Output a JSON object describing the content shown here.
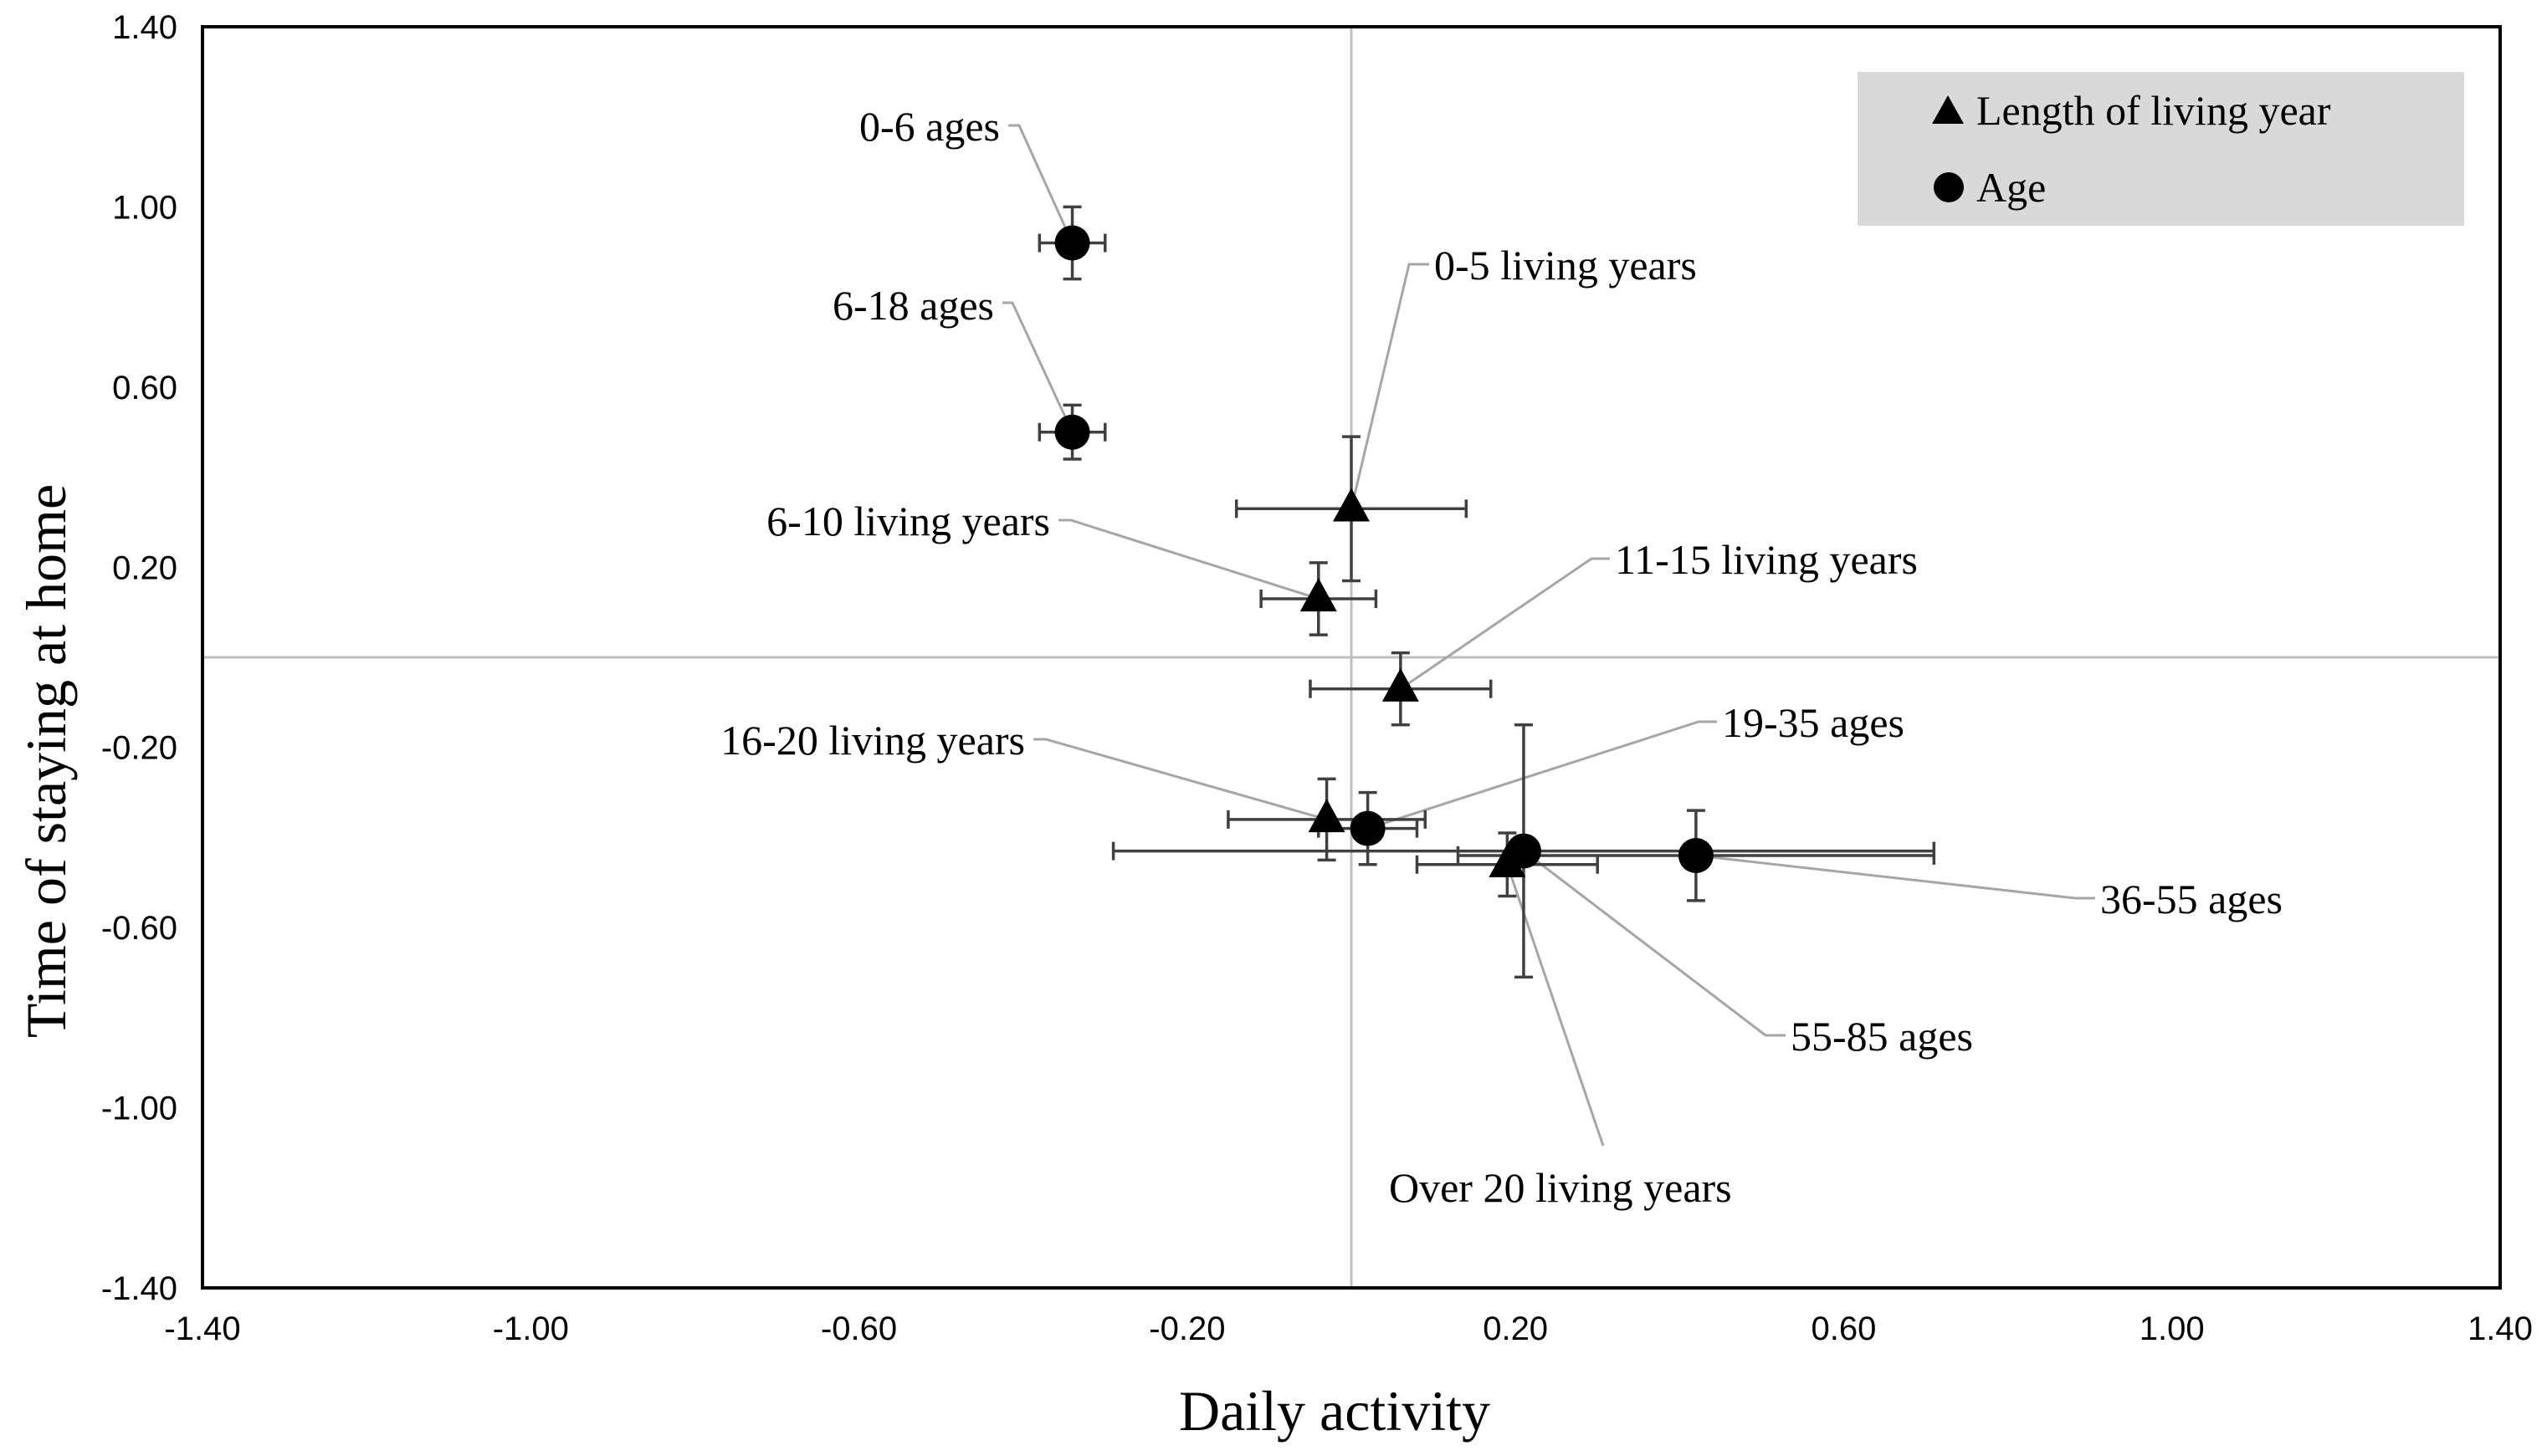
{
  "chart_data": {
    "type": "scatter",
    "title": "",
    "xlabel": "Daily activity",
    "ylabel": "Time of staying at home",
    "xlim": [
      -1.4,
      1.4
    ],
    "ylim": [
      -1.4,
      1.4
    ],
    "x_ticks": [
      "-1.40",
      "-1.00",
      "-0.60",
      "-0.20",
      "0.20",
      "0.60",
      "1.00",
      "1.40"
    ],
    "y_ticks": [
      "1.40",
      "1.00",
      "0.60",
      "0.20",
      "-0.20",
      "-0.60",
      "-1.00",
      "-1.40"
    ],
    "grid": false,
    "reference_lines": {
      "x": 0.0,
      "y": 0.0
    },
    "legend_position": "top-right",
    "series": [
      {
        "name": "Length of living year",
        "marker": "triangle",
        "points": [
          {
            "label": "0-5 living years",
            "x": 0.0,
            "y": 0.33,
            "xerr": 0.14,
            "yerr": 0.16
          },
          {
            "label": "6-10 living years",
            "x": -0.04,
            "y": 0.13,
            "xerr": 0.07,
            "yerr": 0.08
          },
          {
            "label": "11-15 living years",
            "x": 0.06,
            "y": -0.07,
            "xerr": 0.11,
            "yerr": 0.08
          },
          {
            "label": "16-20 living years",
            "x": -0.03,
            "y": -0.36,
            "xerr": 0.12,
            "yerr": 0.09
          },
          {
            "label": "Over 20 living years",
            "x": 0.19,
            "y": -0.46,
            "xerr": 0.11,
            "yerr": 0.07
          }
        ]
      },
      {
        "name": "Age",
        "marker": "circle",
        "points": [
          {
            "label": "0-6 ages",
            "x": -0.34,
            "y": 0.92,
            "xerr": 0.04,
            "yerr": 0.08
          },
          {
            "label": "6-18 ages",
            "x": -0.34,
            "y": 0.5,
            "xerr": 0.04,
            "yerr": 0.06
          },
          {
            "label": "19-35 ages",
            "x": 0.02,
            "y": -0.38,
            "xerr": 0.06,
            "yerr": 0.08
          },
          {
            "label": "55-85 ages",
            "x": 0.21,
            "y": -0.43,
            "xerr": 0.5,
            "yerr": 0.28
          },
          {
            "label": "36-55 ages",
            "x": 0.42,
            "y": -0.44,
            "xerr": 0.29,
            "yerr": 0.1
          }
        ]
      }
    ],
    "annotations": [
      {
        "text": "0-6 ages",
        "point_x": -0.34,
        "point_y": 0.92
      },
      {
        "text": "6-18 ages",
        "point_x": -0.34,
        "point_y": 0.5
      },
      {
        "text": "0-5 living years",
        "point_x": 0.0,
        "point_y": 0.33
      },
      {
        "text": "6-10 living years",
        "point_x": -0.04,
        "point_y": 0.13
      },
      {
        "text": "11-15 living years",
        "point_x": 0.06,
        "point_y": -0.07
      },
      {
        "text": "16-20 living years",
        "point_x": -0.03,
        "point_y": -0.36
      },
      {
        "text": "19-35 ages",
        "point_x": 0.02,
        "point_y": -0.38
      },
      {
        "text": "36-55 ages",
        "point_x": 0.42,
        "point_y": -0.44
      },
      {
        "text": "55-85 ages",
        "point_x": 0.21,
        "point_y": -0.43
      },
      {
        "text": "Over 20 living years",
        "point_x": 0.19,
        "point_y": -0.46
      }
    ],
    "colors": {
      "marker": "#000000",
      "error_bar": "#404040",
      "reference_line": "#bfbfbf",
      "leader_line": "#a6a6a6",
      "legend_bg": "#d9d9d9",
      "frame": "#000000"
    }
  }
}
